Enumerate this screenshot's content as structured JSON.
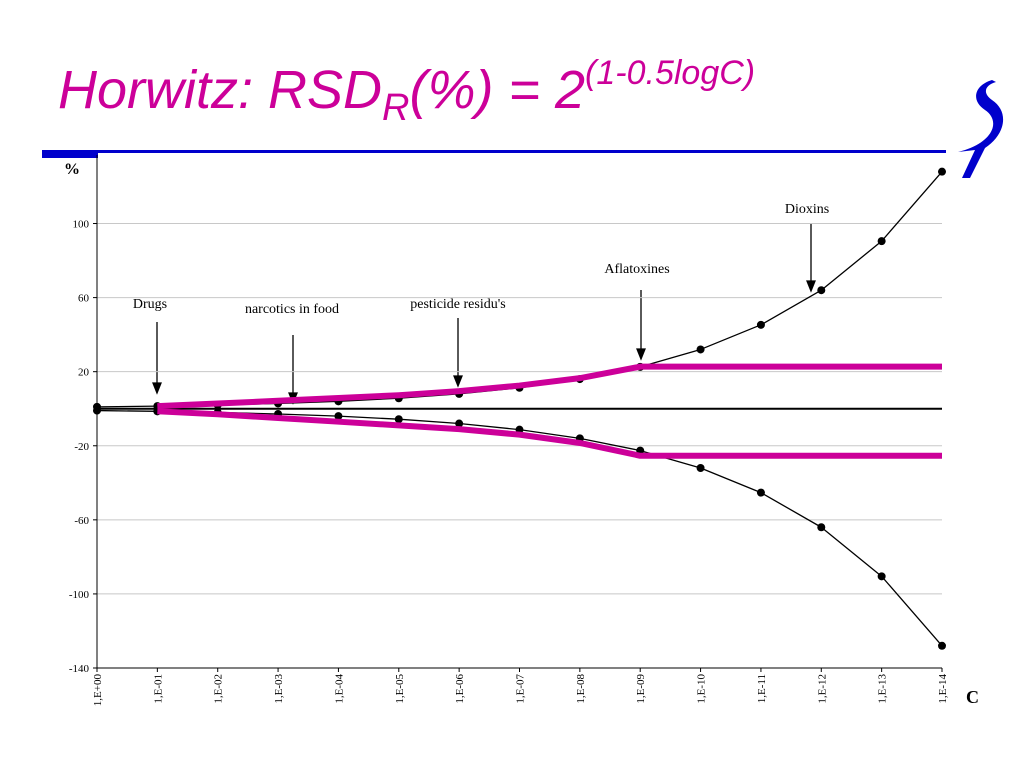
{
  "chart_data": {
    "type": "line",
    "title": {
      "main": "Horwitz: RSD",
      "sub": "R",
      "mid": "(%) = 2",
      "sup": "(1-0.5logC)"
    },
    "y_label": "%",
    "x_label": "C",
    "categories": [
      "1,E+00",
      "1,E-01",
      "1,E-02",
      "1,E-03",
      "1,E-04",
      "1,E-05",
      "1,E-06",
      "1,E-07",
      "1,E-08",
      "1,E-09",
      "1,E-10",
      "1,E-11",
      "1,E-12",
      "1,E-13",
      "1,E-14"
    ],
    "series": [
      {
        "color": "#000000",
        "markers": true,
        "values": [
          1,
          1.41,
          2,
          2.83,
          4,
          5.66,
          8,
          11.3,
          16,
          22.6,
          32,
          45.3,
          64,
          90.5,
          128
        ]
      },
      {
        "color": "#000000",
        "markers": true,
        "values": [
          -1,
          -1.41,
          -2,
          -2.83,
          -4,
          -5.66,
          -8,
          -11.3,
          -16,
          -22.6,
          -32,
          -45.3,
          -64,
          -90.5,
          -128
        ]
      },
      {
        "color": "#cc0099",
        "markers": false,
        "values": [
          null,
          1.4,
          2.8,
          4.3,
          5.8,
          7.3,
          9.5,
          12.5,
          16.5,
          22.7,
          22.7,
          22.7,
          22.7,
          22.7,
          22.7
        ]
      },
      {
        "color": "#cc0099",
        "markers": false,
        "values": [
          null,
          -1.4,
          -3,
          -5,
          -7,
          -9,
          -11,
          -14,
          -18.5,
          -25.4,
          -25.4,
          -25.4,
          -25.4,
          -25.4,
          -25.4
        ]
      }
    ],
    "ylim": [
      -140,
      137
    ],
    "yticks": [
      -140,
      -100,
      -60,
      -20,
      20,
      60,
      100
    ],
    "grid": true,
    "annotations": [
      "Drugs",
      "narcotics in food",
      "pesticide residu's",
      "Aflatoxines",
      "Dioxins"
    ]
  }
}
